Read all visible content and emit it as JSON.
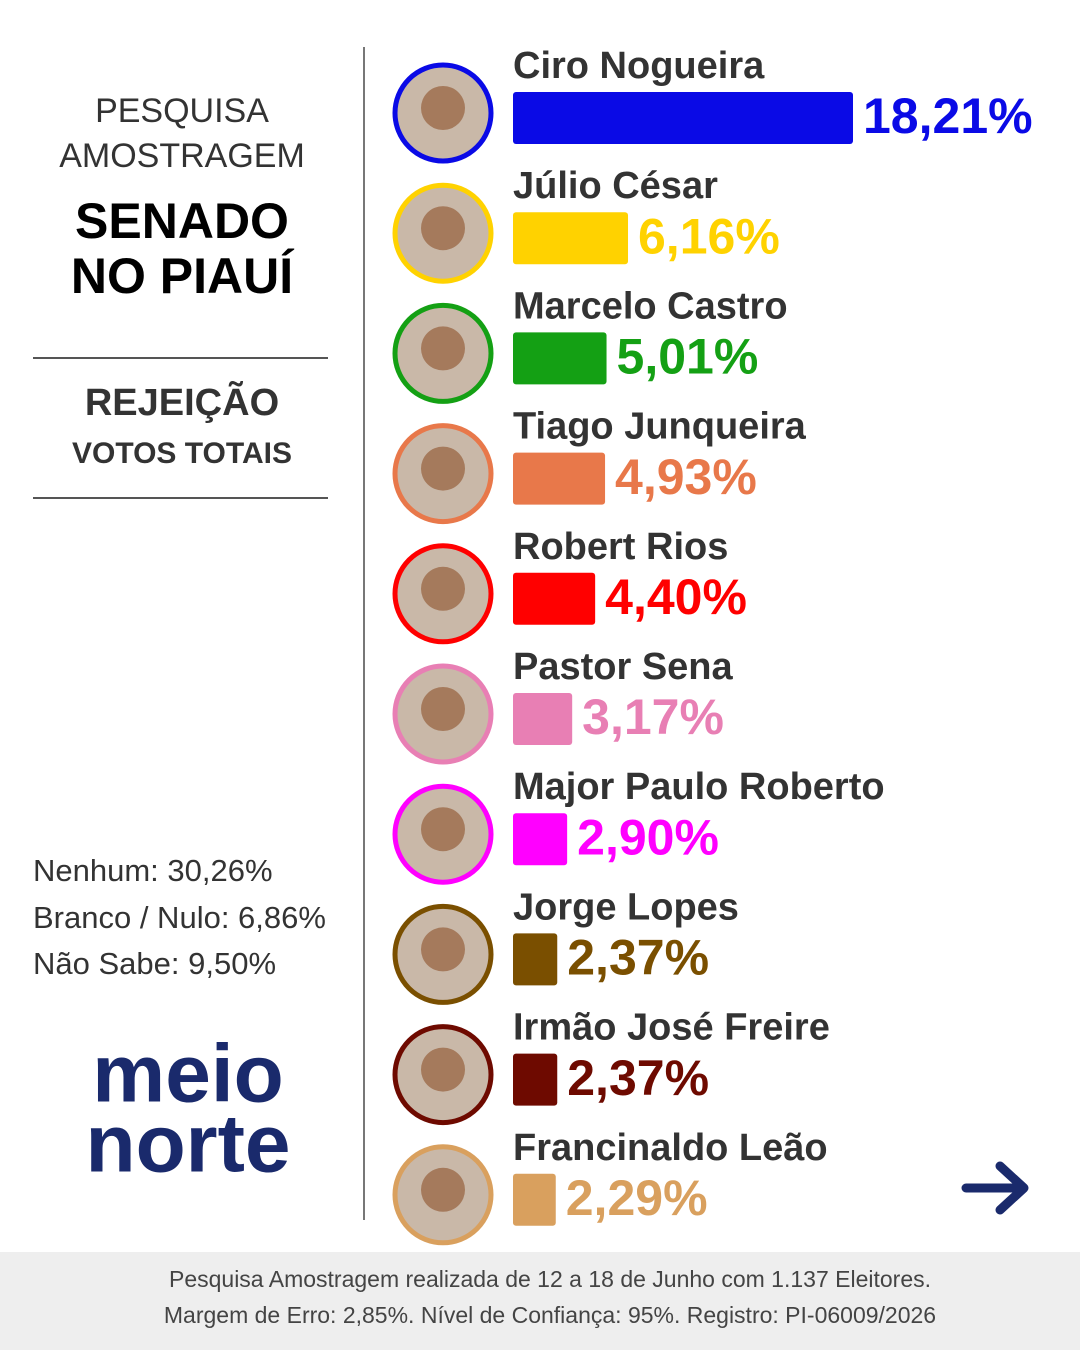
{
  "sidebar": {
    "title_lines": [
      "PESQUISA",
      "AMOSTRAGEM"
    ],
    "headline_lines": [
      "SENADO",
      "NO PIAUÍ"
    ],
    "section": "REJEIÇÃO",
    "subsection": "VOTOS TOTAIS",
    "others": [
      "Nenhum: 30,26%",
      "Branco / Nulo: 6,86%",
      "Não Sabe:  9,50%"
    ],
    "logo": [
      "meio",
      "norte"
    ]
  },
  "chart_data": {
    "type": "bar",
    "orientation": "horizontal",
    "categories": [
      "Ciro Nogueira",
      "Júlio César",
      "Marcelo Castro",
      "Tiago Junqueira",
      "Robert Rios",
      "Pastor Sena",
      "Major Paulo Roberto",
      "Jorge Lopes",
      "Irmão José Freire",
      "Francinaldo Leão"
    ],
    "values": [
      18.21,
      6.16,
      5.01,
      4.93,
      4.4,
      3.17,
      2.9,
      2.37,
      2.37,
      2.29
    ],
    "value_labels": [
      "18,21%",
      "6,16%",
      "5,01%",
      "4,93%",
      "4,40%",
      "3,17%",
      "2,90%",
      "2,37%",
      "2,37%",
      "2,29%"
    ],
    "colors": [
      "#0a0ae6",
      "#ffd200",
      "#14a014",
      "#e8784a",
      "#ff0000",
      "#e87fb4",
      "#ff00ff",
      "#7a4f00",
      "#6e0a00",
      "#d9a05e"
    ]
  },
  "footer": {
    "lines": [
      "Pesquisa Amostragem realizada de 12 a 18 de Junho com 1.137 Eleitores.",
      "Margem de Erro: 2,85%. Nível de Confiança: 95%. Registro: PI-06009/2026"
    ]
  }
}
